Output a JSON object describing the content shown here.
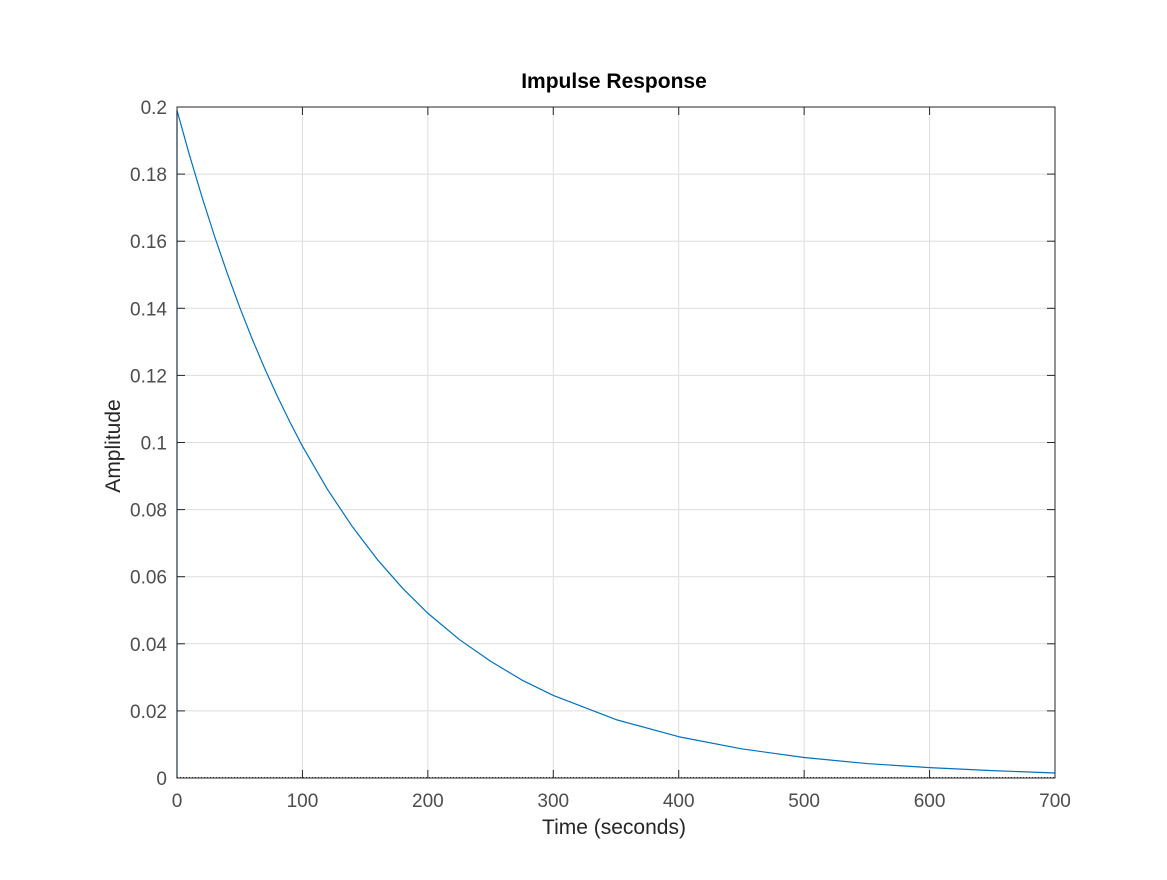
{
  "chart_data": {
    "type": "line",
    "title": "Impulse Response",
    "xlabel": "Time (seconds)",
    "ylabel": "Amplitude",
    "xlim": [
      0,
      700
    ],
    "ylim": [
      0,
      0.2
    ],
    "xticks": [
      0,
      100,
      200,
      300,
      400,
      500,
      600,
      700
    ],
    "xtick_labels": [
      "0",
      "100",
      "200",
      "300",
      "400",
      "500",
      "600",
      "700"
    ],
    "yticks": [
      0,
      0.02,
      0.04,
      0.06,
      0.08,
      0.1,
      0.12,
      0.14,
      0.16,
      0.18,
      0.2
    ],
    "ytick_labels": [
      "0",
      "0.02",
      "0.04",
      "0.06",
      "0.08",
      "0.1",
      "0.12",
      "0.14",
      "0.16",
      "0.18",
      "0.2"
    ],
    "grid": true,
    "series": [
      {
        "color": "#0072bd",
        "x": [
          0,
          0,
          10,
          20,
          30,
          40,
          50,
          60,
          70,
          80,
          90,
          100,
          120,
          140,
          160,
          180,
          200,
          225,
          250,
          275,
          300,
          350,
          400,
          450,
          500,
          550,
          600,
          650,
          700
        ],
        "y": [
          0,
          0.199,
          0.1856,
          0.1731,
          0.1614,
          0.1505,
          0.1403,
          0.1308,
          0.122,
          0.1138,
          0.1061,
          0.0989,
          0.086,
          0.0748,
          0.065,
          0.0565,
          0.0491,
          0.0413,
          0.0348,
          0.0292,
          0.0246,
          0.0174,
          0.0123,
          0.0087,
          0.0061,
          0.0043,
          0.0031,
          0.0022,
          0.0015
        ]
      }
    ]
  }
}
